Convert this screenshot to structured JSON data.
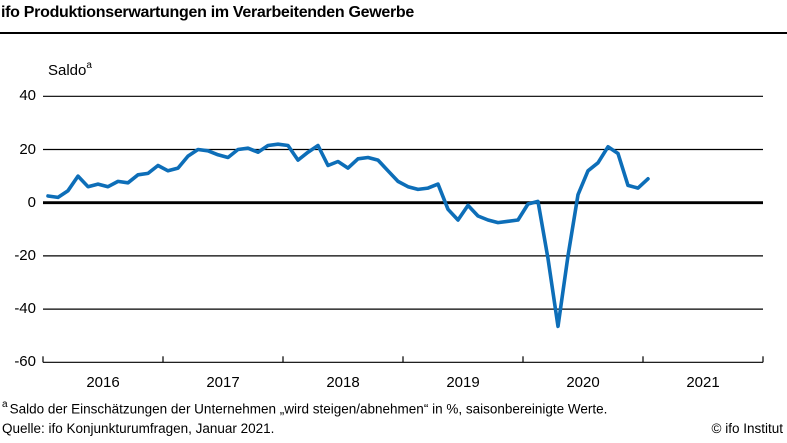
{
  "header": {
    "title": "ifo Produktionserwartungen im Verarbeitenden Gewerbe"
  },
  "chart": {
    "unit_label": "Saldo",
    "unit_footnote_marker": "a"
  },
  "chart_data": {
    "type": "line",
    "title": "ifo Produktionserwartungen im Verarbeitenden Gewerbe",
    "ylabel": "Saldo",
    "x_start": "2016-01",
    "x_end": "2021-01",
    "frequency": "monthly",
    "x_tick_labels": [
      "2016",
      "2017",
      "2018",
      "2019",
      "2020",
      "2021"
    ],
    "y_ticks": [
      40,
      20,
      0,
      -20,
      -40,
      -60
    ],
    "ylim": [
      -60,
      45
    ],
    "grid": "horizontal",
    "legend": "none",
    "line_color": "#0d6eb8",
    "series": [
      {
        "name": "Produktionserwartungen Verarbeitendes Gewerbe (Saldo, saisonbereinigt)",
        "values": [
          2.5,
          2,
          4.5,
          10,
          6,
          7,
          6,
          8,
          7.5,
          10.5,
          11,
          14,
          12,
          13,
          17.5,
          20,
          19.5,
          18,
          17,
          20,
          20.5,
          19,
          21.5,
          22,
          21.5,
          16,
          19,
          21.5,
          14,
          15.5,
          13,
          16.5,
          17,
          16,
          12,
          8,
          6,
          5,
          5.5,
          7,
          -2.5,
          -6.5,
          -1,
          -5,
          -6.5,
          -7.5,
          -7,
          -6.5,
          -0.5,
          0.5,
          -21,
          -46.5,
          -20,
          3,
          12,
          15,
          21,
          18.5,
          6.5,
          5.5,
          9
        ]
      }
    ]
  },
  "footer": {
    "footnote_marker": "a",
    "footnote_text": "Saldo der Einschätzungen der Unternehmen „wird steigen/abnehmen“ in %, saisonbereinigte Werte.",
    "source": "Quelle: ifo Konjunkturumfragen, Januar 2021.",
    "copyright": "© ifo Institut"
  }
}
